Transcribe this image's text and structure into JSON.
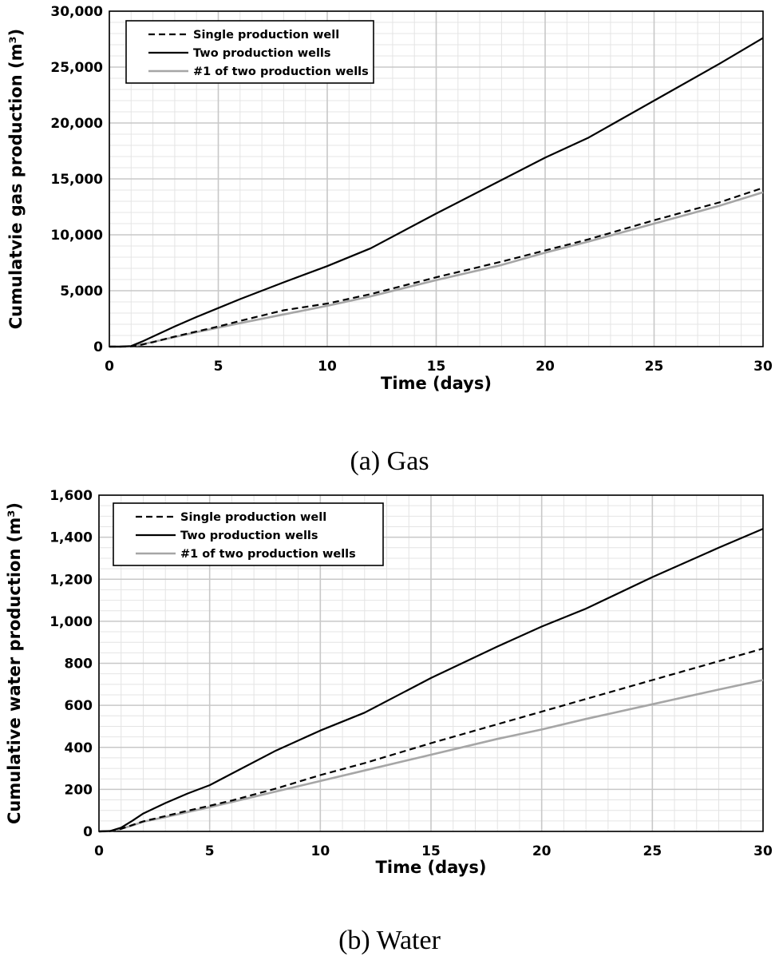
{
  "chart_data": [
    {
      "type": "line",
      "title": "",
      "caption": "(a)  Gas",
      "xlabel": "Time (days)",
      "ylabel": "Cumulatvie gas production (m³)",
      "xlim": [
        0,
        30
      ],
      "ylim": [
        0,
        30000
      ],
      "x_ticks": [
        0,
        5,
        10,
        15,
        20,
        25,
        30
      ],
      "x_tick_labels": [
        "0",
        "5",
        "10",
        "15",
        "20",
        "25",
        "30"
      ],
      "y_ticks": [
        0,
        5000,
        10000,
        15000,
        20000,
        25000,
        30000
      ],
      "y_tick_labels": [
        "0",
        "5,000",
        "10,000",
        "15,000",
        "20,000",
        "25,000",
        "30,000"
      ],
      "grid": true,
      "legend_position": "top-left",
      "series": [
        {
          "name": "Single production well",
          "style": "dashed",
          "color": "#000000",
          "x": [
            0,
            0.5,
            1,
            1.5,
            2,
            3,
            4,
            5,
            6,
            8,
            10,
            12,
            15,
            18,
            20,
            22,
            25,
            28,
            30
          ],
          "y": [
            0,
            0,
            20,
            180,
            400,
            900,
            1350,
            1800,
            2300,
            3250,
            3850,
            4700,
            6200,
            7600,
            8600,
            9600,
            11300,
            12900,
            14200
          ]
        },
        {
          "name": "Two production wells",
          "style": "solid",
          "color": "#000000",
          "x": [
            0,
            0.5,
            1,
            1.5,
            2,
            3,
            4,
            5,
            6,
            8,
            10,
            12,
            15,
            18,
            20,
            22,
            25,
            28,
            30
          ],
          "y": [
            0,
            0,
            50,
            450,
            900,
            1800,
            2650,
            3450,
            4250,
            5750,
            7200,
            8800,
            11900,
            14900,
            16900,
            18700,
            22000,
            25300,
            27600
          ]
        },
        {
          "name": "#1 of two production wells",
          "style": "solid",
          "color": "#a6a6a6",
          "x": [
            0,
            0.5,
            1,
            1.5,
            2,
            3,
            4,
            5,
            6,
            8,
            10,
            12,
            15,
            18,
            20,
            22,
            25,
            28,
            30
          ],
          "y": [
            0,
            0,
            20,
            200,
            420,
            860,
            1290,
            1700,
            2100,
            2880,
            3650,
            4500,
            5950,
            7300,
            8400,
            9400,
            11000,
            12600,
            13800
          ]
        }
      ]
    },
    {
      "type": "line",
      "title": "",
      "caption": "(b)  Water",
      "xlabel": "Time (days)",
      "ylabel": "Cumulative water production (m³)",
      "xlim": [
        0,
        30
      ],
      "ylim": [
        0,
        1600
      ],
      "x_ticks": [
        0,
        5,
        10,
        15,
        20,
        25,
        30
      ],
      "x_tick_labels": [
        "0",
        "5",
        "10",
        "15",
        "20",
        "25",
        "30"
      ],
      "y_ticks": [
        0,
        200,
        400,
        600,
        800,
        1000,
        1200,
        1400,
        1600
      ],
      "y_tick_labels": [
        "0",
        "200",
        "400",
        "600",
        "800",
        "1,000",
        "1,200",
        "1,400",
        "1,600"
      ],
      "grid": true,
      "legend_position": "top-left",
      "series": [
        {
          "name": "Single production well",
          "style": "dashed",
          "color": "#000000",
          "x": [
            0,
            0.5,
            1,
            1.5,
            2,
            3,
            4,
            5,
            6,
            8,
            10,
            12,
            15,
            18,
            20,
            22,
            25,
            28,
            30
          ],
          "y": [
            0,
            1,
            12,
            30,
            48,
            73,
            98,
            122,
            147,
            204,
            268,
            325,
            420,
            510,
            570,
            630,
            720,
            810,
            870
          ]
        },
        {
          "name": "Two production wells",
          "style": "solid",
          "color": "#000000",
          "x": [
            0,
            0.5,
            1,
            1.5,
            2,
            3,
            4,
            5,
            6,
            8,
            10,
            12,
            15,
            18,
            20,
            22,
            25,
            28,
            30
          ],
          "y": [
            0,
            2,
            18,
            50,
            85,
            135,
            180,
            220,
            275,
            385,
            480,
            565,
            730,
            880,
            975,
            1060,
            1210,
            1350,
            1440
          ]
        },
        {
          "name": "#1 of two production wells",
          "style": "solid",
          "color": "#a6a6a6",
          "x": [
            0,
            0.5,
            1,
            1.5,
            2,
            3,
            4,
            5,
            6,
            8,
            10,
            12,
            15,
            18,
            20,
            22,
            25,
            28,
            30
          ],
          "y": [
            0,
            1,
            12,
            28,
            46,
            68,
            92,
            115,
            140,
            190,
            240,
            290,
            365,
            440,
            485,
            535,
            605,
            675,
            720
          ]
        }
      ]
    }
  ]
}
